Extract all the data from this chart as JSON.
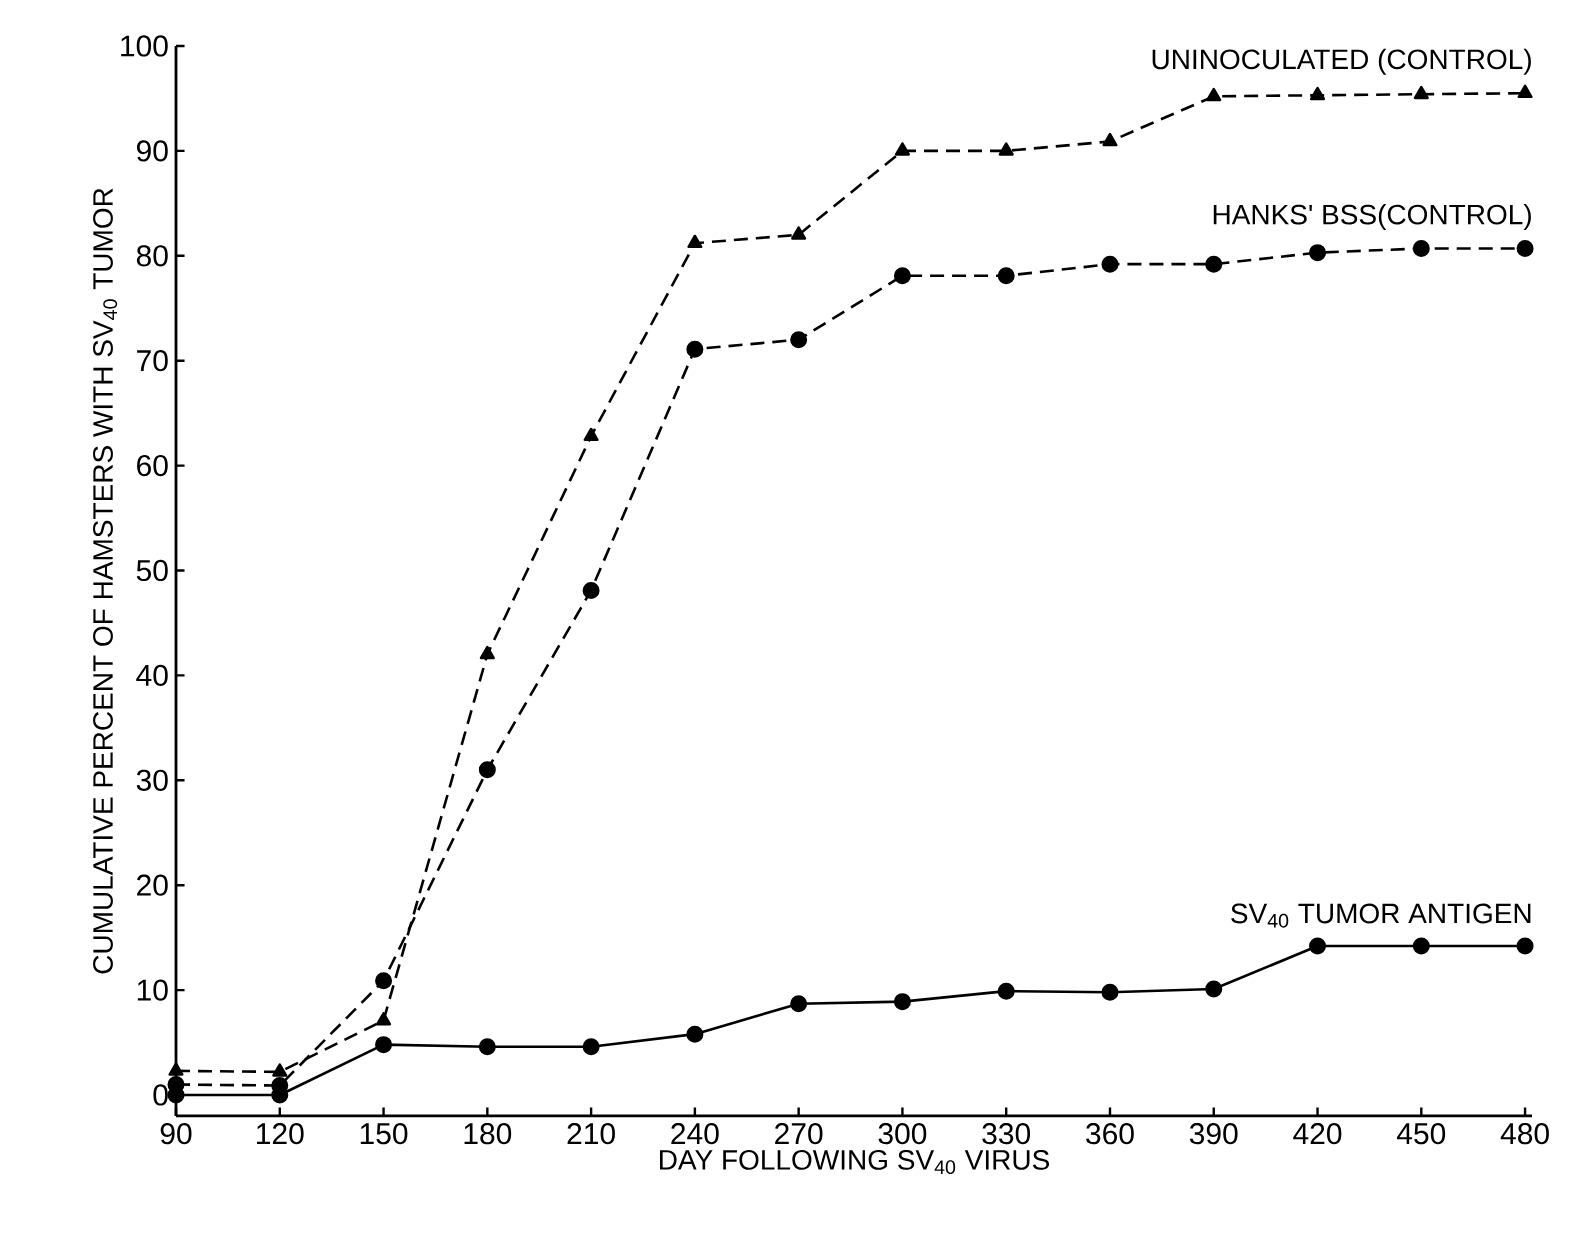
{
  "chart_data": {
    "type": "line",
    "xlabel": "DAY FOLLOWING SV$_{40}$ VIRUS",
    "ylabel": "CUMULATIVE PERCENT OF HAMSTERS WITH SV$_{40}$ TUMOR",
    "x": [
      90,
      120,
      150,
      180,
      210,
      240,
      270,
      300,
      330,
      360,
      390,
      420,
      450,
      480
    ],
    "xlim": [
      90,
      482
    ],
    "xticks": [
      90,
      120,
      150,
      180,
      210,
      240,
      270,
      300,
      330,
      360,
      390,
      420,
      450,
      480
    ],
    "ylim": [
      -2,
      100
    ],
    "yticks": [
      0,
      10,
      20,
      30,
      40,
      50,
      60,
      70,
      80,
      90,
      100
    ],
    "grid": false,
    "legend": false,
    "series": [
      {
        "name": "UNINOCULATED (CONTROL)",
        "color": "#000000",
        "marker": "triangle",
        "line_style": "dashed",
        "values": [
          2.3,
          2.2,
          7.1,
          42,
          62.8,
          81.2,
          82,
          90,
          90,
          90.9,
          95.2,
          95.3,
          95.4,
          95.5
        ]
      },
      {
        "name": "HANKS' BSS(CONTROL)",
        "color": "#000000",
        "marker": "circle",
        "line_style": "dashed",
        "values": [
          1.0,
          0.9,
          10.9,
          31,
          48.1,
          71.1,
          72,
          78.1,
          78.1,
          79.2,
          79.2,
          80.3,
          80.7,
          80.7
        ]
      },
      {
        "name": "SV$_{40}$ TUMOR ANTIGEN",
        "color": "#000000",
        "marker": "circle",
        "line_style": "solid",
        "values": [
          0,
          0,
          4.8,
          4.6,
          4.6,
          5.8,
          8.7,
          8.9,
          9.9,
          9.8,
          10.1,
          14.2,
          14.2,
          14.2
        ]
      }
    ]
  }
}
